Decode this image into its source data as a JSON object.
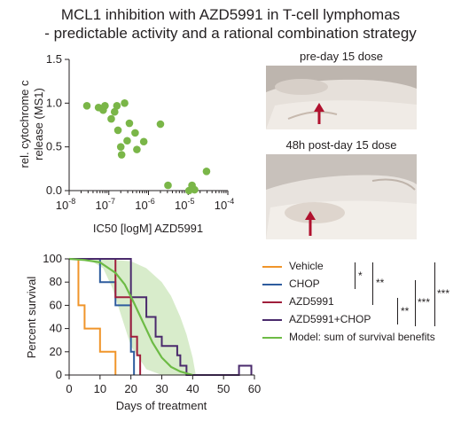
{
  "title": {
    "line1": "MCL1 inhibition with AZD5991 in T-cell lymphomas",
    "line2": "- predictable activity and a rational combination strategy"
  },
  "photos": {
    "top_label": "pre-day 15 dose",
    "bottom_label": "48h post-day 15 dose"
  },
  "colors": {
    "scatter": "#7ab648",
    "vehicle": "#f0952a",
    "chop": "#2e5c9e",
    "azd5991": "#a01f3c",
    "combo": "#4a2a6c",
    "model": "#6dbb45",
    "model_band": "#d8eccb",
    "arrow": "#b0112e"
  },
  "legend": {
    "items": [
      {
        "label": "Vehicle",
        "color": "#f0952a"
      },
      {
        "label": "CHOP",
        "color": "#2e5c9e"
      },
      {
        "label": "AZD5991",
        "color": "#a01f3c"
      },
      {
        "label": "AZD5991+CHOP",
        "color": "#4a2a6c"
      },
      {
        "label": "Model: sum of survival benefits",
        "color": "#6dbb45"
      }
    ],
    "significance": [
      "*",
      "**",
      "**",
      "***",
      "***"
    ]
  },
  "chart_data": [
    {
      "type": "scatter",
      "xlabel": "IC50 [logM] AZD5991",
      "ylabel": "rel. cytochrome c release (MS1)",
      "xscale": "log",
      "xlim": [
        1e-08,
        0.0001
      ],
      "ylim": [
        0,
        1.5
      ],
      "x_tick_labels": [
        "10-8",
        "10-7",
        "10-6",
        "10-5",
        "10-4"
      ],
      "y_tick_labels": [
        "0.0",
        "0.5",
        "1.0",
        "1.5"
      ],
      "y_ticks": [
        0,
        0.5,
        1.0,
        1.5
      ],
      "grid": false,
      "points": [
        {
          "x": 2.8e-08,
          "y": 0.97
        },
        {
          "x": 5.5e-08,
          "y": 0.95
        },
        {
          "x": 7.2e-08,
          "y": 0.92
        },
        {
          "x": 8e-08,
          "y": 0.97
        },
        {
          "x": 1.15e-07,
          "y": 0.82
        },
        {
          "x": 1.4e-07,
          "y": 0.9
        },
        {
          "x": 1.6e-07,
          "y": 0.97
        },
        {
          "x": 1.7e-07,
          "y": 0.69
        },
        {
          "x": 2e-07,
          "y": 0.5
        },
        {
          "x": 2.1e-07,
          "y": 0.41
        },
        {
          "x": 2.5e-07,
          "y": 1.0
        },
        {
          "x": 2.9e-07,
          "y": 0.57
        },
        {
          "x": 3.3e-07,
          "y": 0.77
        },
        {
          "x": 4.6e-07,
          "y": 0.66
        },
        {
          "x": 5.1e-07,
          "y": 0.47
        },
        {
          "x": 7.6e-07,
          "y": 0.56
        },
        {
          "x": 2e-06,
          "y": 0.76
        },
        {
          "x": 3.1e-06,
          "y": 0.06
        },
        {
          "x": 1.05e-05,
          "y": 0.0
        },
        {
          "x": 1.25e-05,
          "y": 0.06
        },
        {
          "x": 1.45e-05,
          "y": 0.01
        },
        {
          "x": 2.9e-05,
          "y": 0.22
        }
      ]
    },
    {
      "type": "line",
      "step": true,
      "xlabel": "Days of treatment",
      "ylabel": "Percent survival",
      "xlim": [
        0,
        60
      ],
      "ylim": [
        0,
        100
      ],
      "x_ticks": [
        0,
        10,
        20,
        30,
        40,
        50,
        60
      ],
      "y_ticks": [
        0,
        20,
        40,
        60,
        80,
        100
      ],
      "grid": false,
      "series": [
        {
          "name": "Vehicle",
          "x": [
            0,
            3,
            3,
            5,
            5,
            10,
            10,
            15,
            15
          ],
          "y": [
            100,
            100,
            60,
            60,
            40,
            40,
            20,
            20,
            0
          ]
        },
        {
          "name": "CHOP",
          "x": [
            0,
            10,
            10,
            15,
            15,
            20,
            20,
            21,
            21
          ],
          "y": [
            100,
            100,
            80,
            80,
            60,
            60,
            20,
            20,
            0
          ]
        },
        {
          "name": "AZD5991",
          "x": [
            0,
            15,
            15,
            20,
            20,
            22,
            22,
            23,
            23
          ],
          "y": [
            100,
            100,
            67,
            67,
            33,
            33,
            17,
            17,
            0
          ]
        },
        {
          "name": "AZD5991+CHOP",
          "x": [
            0,
            20,
            20,
            25,
            25,
            28,
            28,
            30,
            30,
            35,
            35,
            36,
            36,
            38,
            38,
            55,
            55,
            59,
            59
          ],
          "y": [
            100,
            100,
            67,
            67,
            50,
            50,
            33,
            33,
            25,
            25,
            17,
            17,
            8,
            8,
            0,
            0,
            8,
            8,
            0
          ]
        },
        {
          "name": "Model: sum of survival benefits",
          "x": [
            0,
            5,
            10,
            15,
            18,
            21,
            24,
            27,
            30,
            33,
            36,
            40
          ],
          "y": [
            100,
            99,
            97,
            88,
            78,
            62,
            45,
            28,
            15,
            7,
            3,
            0
          ]
        }
      ]
    }
  ]
}
